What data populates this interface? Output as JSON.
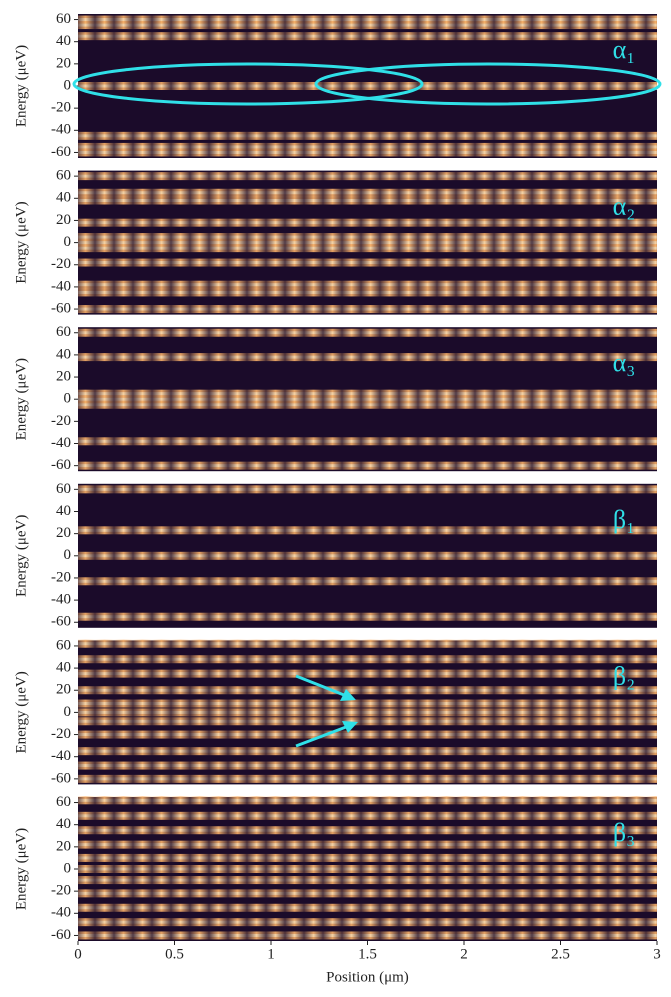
{
  "chart_data": [
    {
      "type": "heatmap",
      "label": "α₁",
      "ylabel": "Energy (μeV)",
      "ylim": [
        -65,
        65
      ],
      "yticks": [
        -60,
        -40,
        -20,
        0,
        20,
        40,
        60
      ],
      "xlim": [
        0,
        3
      ],
      "levels": [
        -60,
        -55,
        -45,
        0,
        45,
        55,
        60
      ],
      "background": "#1b0b2a",
      "color": "#fbb36a"
    },
    {
      "type": "heatmap",
      "label": "α₂",
      "ylabel": "Energy (μeV)",
      "ylim": [
        -65,
        65
      ],
      "yticks": [
        -60,
        -40,
        -20,
        0,
        20,
        40,
        60
      ],
      "xlim": [
        0,
        3
      ],
      "levels": [
        -60,
        -45,
        -38,
        -18,
        -5,
        0,
        5,
        18,
        38,
        45,
        60
      ],
      "background": "#1b0b2a",
      "color": "#fbb36a"
    },
    {
      "type": "heatmap",
      "label": "α₃",
      "ylabel": "Energy (μeV)",
      "ylim": [
        -65,
        65
      ],
      "yticks": [
        -60,
        -40,
        -20,
        0,
        20,
        40,
        60
      ],
      "xlim": [
        0,
        3
      ],
      "levels": [
        -60,
        -38,
        -5,
        0,
        5,
        38,
        60
      ],
      "background": "#1b0b2a",
      "color": "#fbb36a"
    },
    {
      "type": "heatmap",
      "label": "β₁",
      "ylabel": "Energy (μeV)",
      "ylim": [
        -65,
        65
      ],
      "yticks": [
        -60,
        -40,
        -20,
        0,
        20,
        40,
        60
      ],
      "xlim": [
        0,
        3
      ],
      "levels": [
        -55,
        -23,
        0,
        23,
        60
      ],
      "background": "#1b0b2a",
      "color": "#fbb36a"
    },
    {
      "type": "heatmap",
      "label": "β₂",
      "ylabel": "Energy (μeV)",
      "ylim": [
        -65,
        65
      ],
      "yticks": [
        -60,
        -40,
        -20,
        0,
        20,
        40,
        60
      ],
      "xlim": [
        0,
        3
      ],
      "levels": [
        -60,
        -48,
        -35,
        -20,
        -8,
        0,
        8,
        20,
        35,
        48,
        62
      ],
      "background": "#1b0b2a",
      "color": "#fbb36a"
    },
    {
      "type": "heatmap",
      "label": "β₃",
      "ylabel": "Energy (μeV)",
      "ylim": [
        -65,
        65
      ],
      "yticks": [
        -60,
        -40,
        -20,
        0,
        20,
        40,
        60
      ],
      "xlim": [
        0,
        3
      ],
      "xticks": [
        0,
        0.5,
        1,
        1.5,
        2,
        2.5,
        3
      ],
      "xlabel": "Position (μm)",
      "levels": [
        -60,
        -48,
        -35,
        -22,
        -10,
        0,
        10,
        22,
        35,
        48,
        62
      ],
      "background": "#1b0b2a",
      "color": "#fbb36a"
    }
  ]
}
